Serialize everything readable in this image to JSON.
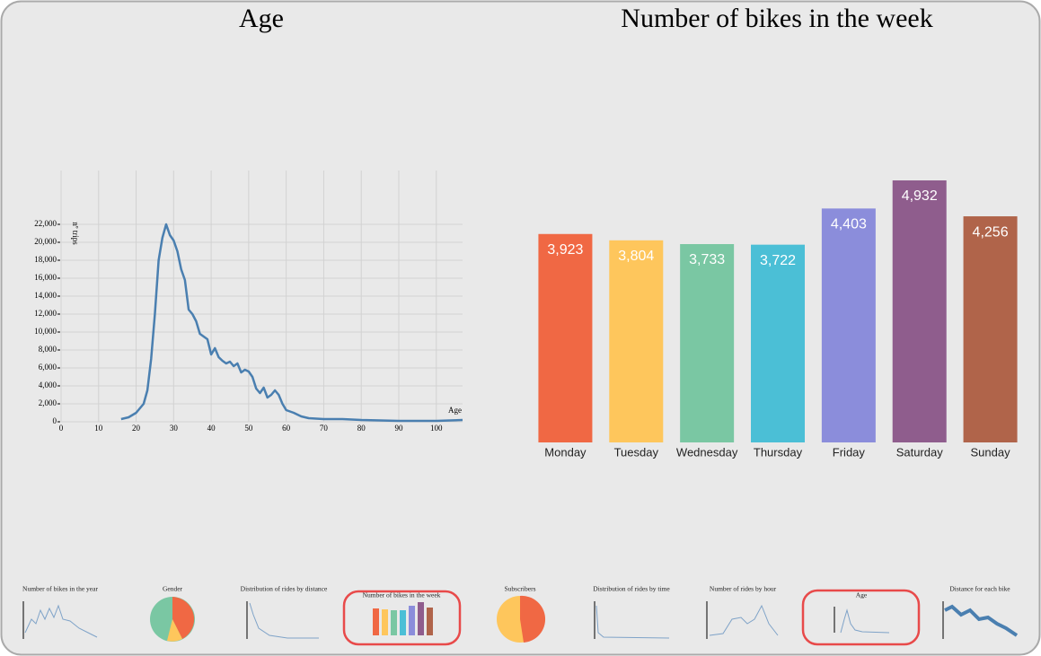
{
  "chart_data": [
    {
      "type": "line",
      "title": "Age",
      "x_label": "Age",
      "y_label": "nº trips",
      "x": [
        16,
        18,
        20,
        22,
        23,
        24,
        25,
        26,
        27,
        28,
        29,
        30,
        31,
        32,
        33,
        34,
        35,
        36,
        37,
        38,
        39,
        40,
        41,
        42,
        43,
        44,
        45,
        46,
        47,
        48,
        49,
        50,
        51,
        52,
        53,
        54,
        55,
        56,
        57,
        58,
        59,
        60,
        62,
        64,
        66,
        70,
        75,
        80,
        90,
        100,
        107
      ],
      "values": [
        300,
        500,
        1000,
        2000,
        3500,
        7000,
        12000,
        18000,
        20500,
        22000,
        20800,
        20200,
        19000,
        17000,
        15800,
        12500,
        12000,
        11200,
        9800,
        9500,
        9200,
        7500,
        8200,
        7200,
        6800,
        6500,
        6700,
        6200,
        6500,
        5500,
        5800,
        5600,
        5000,
        3700,
        3200,
        3800,
        2700,
        3000,
        3500,
        3000,
        2000,
        1300,
        1000,
        600,
        400,
        300,
        300,
        200,
        100,
        100,
        200
      ],
      "color": "#4a7fb0",
      "xlim": [
        0,
        107
      ],
      "xticks": [
        0,
        10,
        20,
        30,
        40,
        50,
        60,
        70,
        80,
        90,
        100
      ],
      "ylim": [
        0,
        28000
      ],
      "yticks": [
        0,
        {
          "value": 2000,
          "label": "2,000"
        },
        {
          "value": 4000,
          "label": "4,000"
        },
        {
          "value": 6000,
          "label": "6,000"
        },
        {
          "value": 8000,
          "label": "8,000"
        },
        {
          "value": 10000,
          "label": "10,000"
        },
        {
          "value": 12000,
          "label": "12,000"
        },
        {
          "value": 14000,
          "label": "14,000"
        },
        {
          "value": 16000,
          "label": "16,000"
        },
        {
          "value": 18000,
          "label": "18,000"
        },
        {
          "value": 20000,
          "label": "20,000"
        },
        {
          "value": 22000,
          "label": "22,000"
        }
      ],
      "grid": true
    },
    {
      "type": "bar",
      "title": "Number of bikes in the week",
      "categories": [
        "Monday",
        "Tuesday",
        "Wednesday",
        "Thursday",
        "Friday",
        "Saturday",
        "Sunday"
      ],
      "values": [
        3923,
        3804,
        3733,
        3722,
        4403,
        4932,
        4256
      ],
      "value_labels": [
        "3,923",
        "3,804",
        "3,733",
        "3,722",
        "4,403",
        "4,932",
        "4,256"
      ],
      "colors": [
        "#f06844",
        "#fec65c",
        "#7ac7a3",
        "#4bbfd6",
        "#8b8ddb",
        "#8f5d8d",
        "#b0644a"
      ],
      "ylim": [
        0,
        5000
      ]
    }
  ],
  "gallery": [
    "Number of bikes in the year",
    "Gender",
    "Distribution of rides by distance",
    "Number of bikes in the week",
    "Subscribers",
    "Distribution of rides by time",
    "Number of rides by hour",
    "Age",
    "Distance for each bike"
  ]
}
